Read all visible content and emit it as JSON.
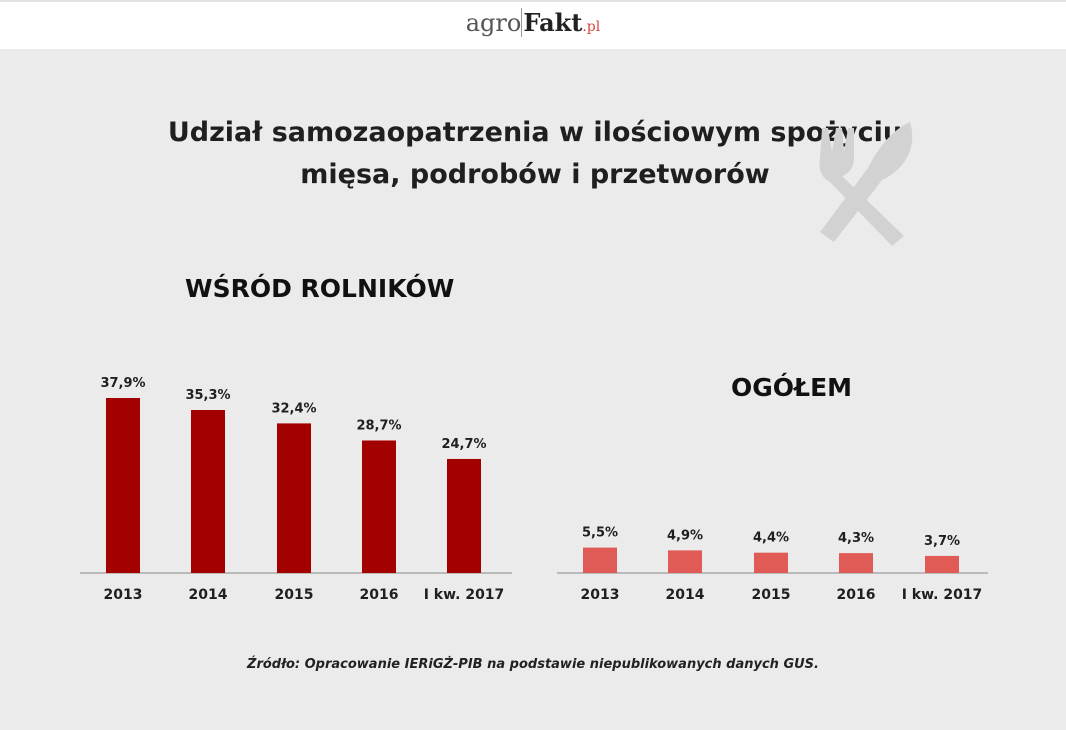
{
  "header": {
    "logo_part1": "agro",
    "logo_part2": "Fakt",
    "logo_part3": ".pl"
  },
  "title_line1": "Udział samozaopatrzenia w ilościowym spożyciu",
  "title_line2": "mięsa, podrobów i przetworów",
  "decoration_icon": "fork-knife-icon",
  "source": "Źródło: Opracowanie IERiGŻ-PIB na podstawie niepublikowanych danych GUS.",
  "colors": {
    "farmers": "#a30000",
    "total": "#e05a56",
    "background": "#ebebeb"
  },
  "chart_data": [
    {
      "type": "bar",
      "title": "WŚRÓD ROLNIKÓW",
      "categories": [
        "2013",
        "2014",
        "2015",
        "2016",
        "I kw. 2017"
      ],
      "values": [
        37.9,
        35.3,
        32.4,
        28.7,
        24.7
      ],
      "value_labels": [
        "37,9%",
        "35,3%",
        "32,4%",
        "28,7%",
        "24,7%"
      ],
      "unit": "%",
      "ylim": [
        0,
        40
      ]
    },
    {
      "type": "bar",
      "title": "OGÓŁEM",
      "categories": [
        "2013",
        "2014",
        "2015",
        "2016",
        "I kw. 2017"
      ],
      "values": [
        5.5,
        4.9,
        4.4,
        4.3,
        3.7
      ],
      "value_labels": [
        "5,5%",
        "4,9%",
        "4,4%",
        "4,3%",
        "3,7%"
      ],
      "unit": "%",
      "ylim": [
        0,
        40
      ]
    }
  ]
}
